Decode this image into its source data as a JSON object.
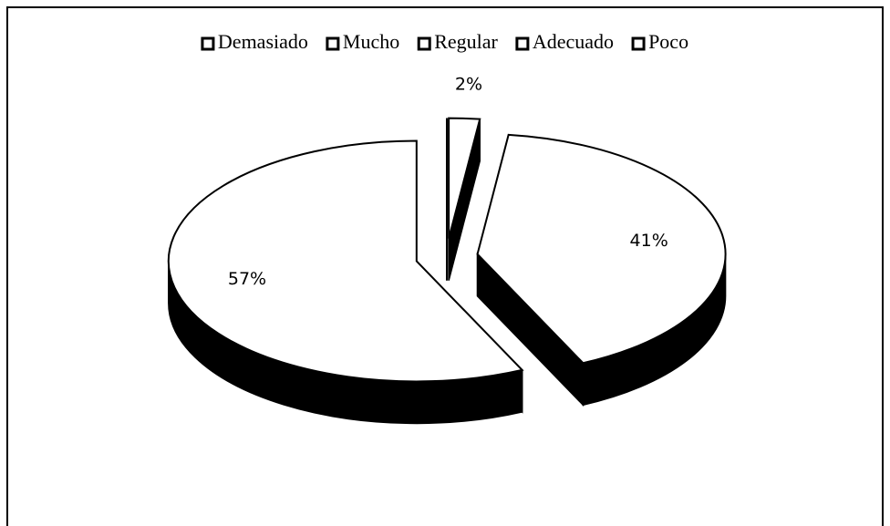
{
  "chart_data": {
    "type": "pie",
    "categories": [
      "Demasiado",
      "Mucho",
      "Regular",
      "Adecuado",
      "Poco"
    ],
    "values": [
      0,
      0,
      2,
      41,
      57
    ],
    "value_labels": [
      null,
      null,
      "2%",
      "41%",
      "57%"
    ],
    "colors": [
      "#ffffff",
      "#ffffff",
      "#ffffff",
      "#ffffff",
      "#ffffff"
    ],
    "side_color": "#000000",
    "legend": "top",
    "three_d": true,
    "exploded": true
  }
}
